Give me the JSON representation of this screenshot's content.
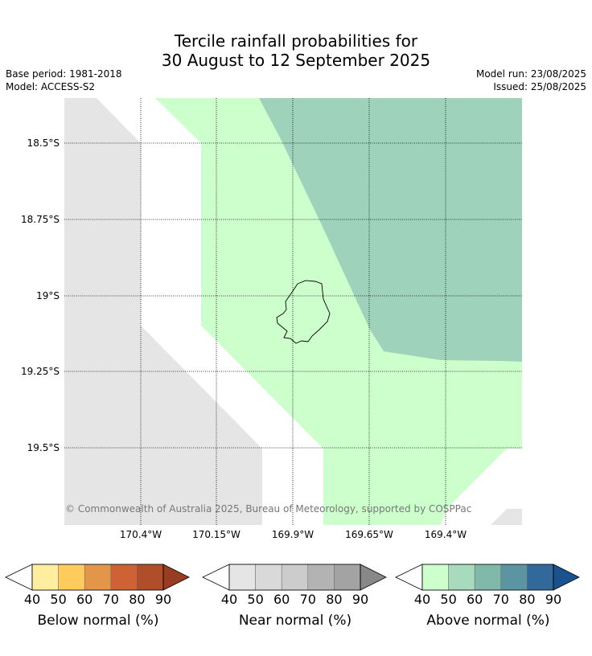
{
  "title_line1": "Tercile rainfall probabilities for",
  "title_line2": "30 August to 12 September 2025",
  "base_period": "Base period: 1981-2018",
  "model": "Model: ACCESS-S2",
  "model_run": "Model run: 23/08/2025",
  "issued": "Issued: 25/08/2025",
  "copyright": "© Commonwealth of Australia 2025, Bureau of Meteorology, supported by COSPPac",
  "lat_labels": [
    "18.5°S",
    "18.75°S",
    "19°S",
    "19.25°S",
    "19.5°S"
  ],
  "lon_labels": [
    "170.4°W",
    "170.15°W",
    "169.9°W",
    "169.65°W",
    "169.4°W"
  ],
  "colors": {
    "near_40": "#e5e5e5",
    "above_50": "#ccffcc",
    "above_60": "#9ed2bb"
  },
  "legends": [
    {
      "title": "Below normal (%)",
      "ticks": [
        "40",
        "50",
        "60",
        "70",
        "80",
        "90"
      ],
      "colors": [
        "#ffeda0",
        "#fecc5c",
        "#e3964a",
        "#cf6234",
        "#b04e2a",
        "#993d22"
      ]
    },
    {
      "title": "Near normal (%)",
      "ticks": [
        "40",
        "50",
        "60",
        "70",
        "80",
        "90"
      ],
      "colors": [
        "#e5e5e5",
        "#d9d9d9",
        "#cccccc",
        "#b3b3b3",
        "#a3a3a3",
        "#888888"
      ]
    },
    {
      "title": "Above normal (%)",
      "ticks": [
        "40",
        "50",
        "60",
        "70",
        "80",
        "90"
      ],
      "colors": [
        "#ccffcc",
        "#a8dbbd",
        "#80b8aa",
        "#5b95a2",
        "#31699b",
        "#1a528f"
      ]
    }
  ]
}
